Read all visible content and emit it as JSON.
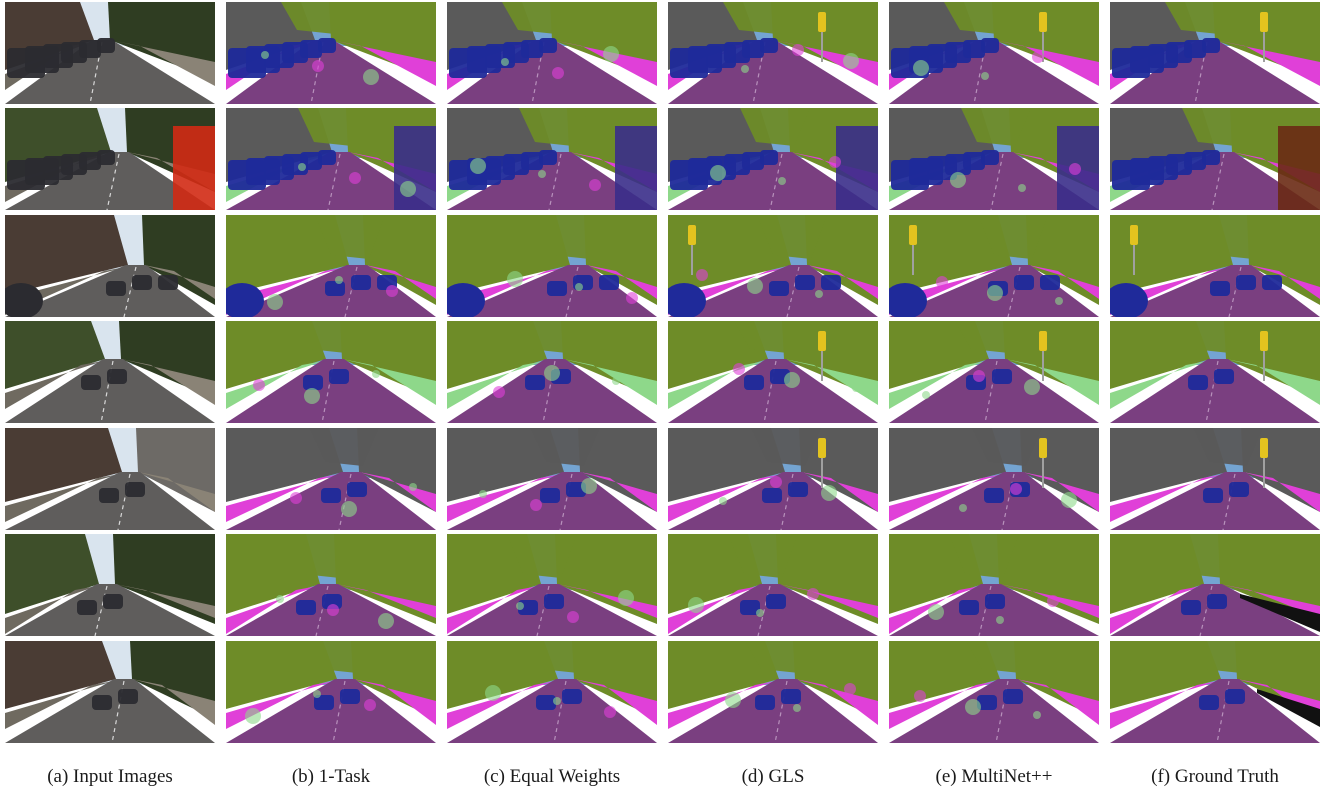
{
  "figure": {
    "columns": [
      {
        "key": "input",
        "caption": "(a) Input Images"
      },
      {
        "key": "1task",
        "caption": "(b) 1-Task"
      },
      {
        "key": "equal",
        "caption": "(c) Equal Weights"
      },
      {
        "key": "gls",
        "caption": "(d) GLS"
      },
      {
        "key": "multinet",
        "caption": "(e) MultiNet++"
      },
      {
        "key": "gt",
        "caption": "(f) Ground Truth"
      }
    ],
    "rows": 7,
    "palette": {
      "road": "#7a3f80",
      "sidewalk": "#e040d8",
      "vegetation": "#6e8c28",
      "terrain": "#8ed88a",
      "car": "#1f2a9a",
      "sky": "#74a4d2",
      "building": "#5a5a5a",
      "sign": "#e3c31f",
      "pole": "#a0a0a0"
    }
  }
}
